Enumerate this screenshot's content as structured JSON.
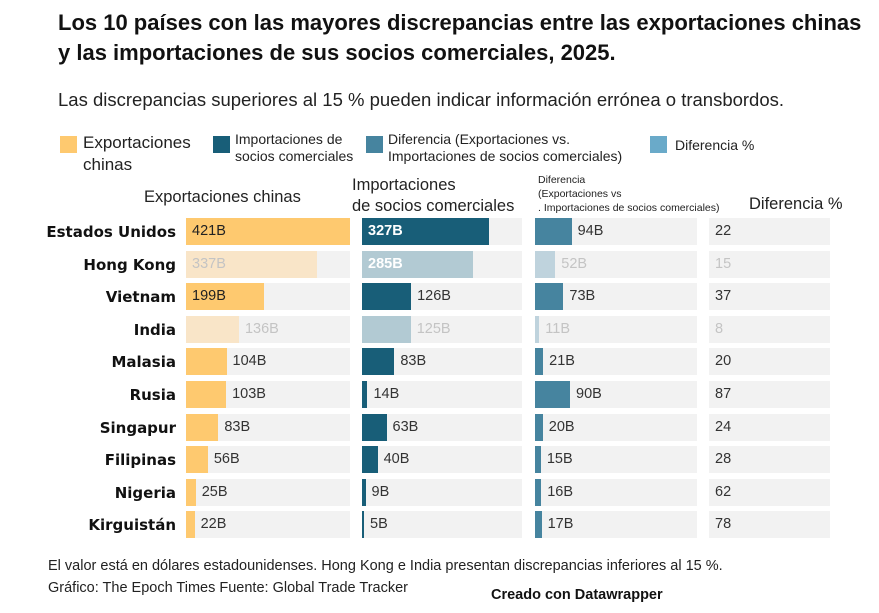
{
  "title": "Los 10 países con las mayores discrepancias entre las exportaciones chinas y las importaciones de sus socios comerciales, 2025.",
  "subtitle": "Las discrepancias superiores al 15 % pueden indicar información errónea o transbordos.",
  "legend": [
    {
      "label": "Exportaciones chinas",
      "color": "#fec96f"
    },
    {
      "label": "Importaciones de socios comerciales",
      "color": "#185e78"
    },
    {
      "label": "Diferencia (Exportaciones vs. Importaciones de socios comerciales)",
      "color": "#46849f"
    },
    {
      "label": "Diferencia %",
      "color": "#6aaac9"
    }
  ],
  "chart_data": {
    "type": "bar",
    "columns": [
      "Exportaciones chinas",
      "Importaciones de socios comerciales",
      "Diferencia (Exportaciones vs . Importaciones de socios comerciales)",
      "Diferencia %"
    ],
    "categories": [
      "Estados Unidos",
      "Hong Kong",
      "Vietnam",
      "India",
      "Malasia",
      "Rusia",
      "Singapur",
      "Filipinas",
      "Nigeria",
      "Kirguistán"
    ],
    "series": [
      {
        "name": "Exportaciones chinas",
        "values": [
          421,
          337,
          199,
          136,
          104,
          103,
          83,
          56,
          25,
          22
        ],
        "labels": [
          "421B",
          "337B",
          "199B",
          "136B",
          "104B",
          "103B",
          "83B",
          "56B",
          "25B",
          "22B"
        ],
        "color": "#fec96f",
        "faded_color": "#f9e5c8"
      },
      {
        "name": "Importaciones de socios comerciales",
        "values": [
          327,
          285,
          126,
          125,
          83,
          14,
          63,
          40,
          9,
          5
        ],
        "labels": [
          "327B",
          "285B",
          "126B",
          "125B",
          "83B",
          "14B",
          "63B",
          "40B",
          "9B",
          "5B"
        ],
        "color": "#185e78",
        "faded_color": "#b2cad3"
      },
      {
        "name": "Diferencia (Exportaciones vs. Importaciones de socios comerciales)",
        "values": [
          94,
          52,
          73,
          11,
          21,
          90,
          20,
          15,
          16,
          17
        ],
        "labels": [
          "94B",
          "52B",
          "73B",
          "11B",
          "21B",
          "90B",
          "20B",
          "15B",
          "16B",
          "17B"
        ],
        "color": "#46849f",
        "faded_color": "#bfd3dd"
      },
      {
        "name": "Diferencia %",
        "values": [
          22,
          15,
          37,
          8,
          20,
          87,
          24,
          28,
          62,
          78
        ]
      }
    ],
    "faded_rows": [
      "Hong Kong",
      "India"
    ],
    "unit": "B"
  },
  "headers": {
    "exports": "Exportaciones chinas",
    "imports_1": "Importaciones",
    "imports_2": "de socios comerciales",
    "diff_1": "Diferencia",
    "diff_2": "(Exportaciones vs",
    "diff_3": ". Importaciones de socios comerciales)",
    "pct": "Diferencia %"
  },
  "notes": {
    "line1": "El valor está en dólares estadounidenses. Hong Kong e India presentan discrepancias inferiores al 15 %.",
    "line2": "Gráfico: The Epoch Times Fuente: Global Trade Tracker",
    "credit": "Creado con Datawrapper"
  }
}
